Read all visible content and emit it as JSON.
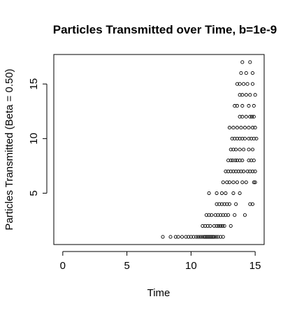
{
  "chart_data": {
    "type": "scatter",
    "title": "Particles Transmitted over Time, b=1e-9",
    "xlabel": "Time",
    "ylabel": "Particles Transmitted (Beta = 0.50)",
    "xlim": [
      -0.7,
      15.7
    ],
    "ylim": [
      0.3,
      17.7
    ],
    "x_ticks": [
      0,
      5,
      10,
      15
    ],
    "y_ticks": [
      5,
      10,
      15
    ],
    "grid": false,
    "marker": "open-circle",
    "points": [
      {
        "x": 7.8,
        "y": 1
      },
      {
        "x": 8.4,
        "y": 1
      },
      {
        "x": 8.8,
        "y": 1
      },
      {
        "x": 9.0,
        "y": 1
      },
      {
        "x": 9.3,
        "y": 1
      },
      {
        "x": 9.6,
        "y": 1
      },
      {
        "x": 9.8,
        "y": 1
      },
      {
        "x": 10.0,
        "y": 1
      },
      {
        "x": 10.2,
        "y": 1
      },
      {
        "x": 10.4,
        "y": 1
      },
      {
        "x": 10.55,
        "y": 1
      },
      {
        "x": 10.7,
        "y": 1
      },
      {
        "x": 10.85,
        "y": 1
      },
      {
        "x": 11.0,
        "y": 1
      },
      {
        "x": 11.1,
        "y": 1
      },
      {
        "x": 11.2,
        "y": 1
      },
      {
        "x": 11.3,
        "y": 1
      },
      {
        "x": 11.4,
        "y": 1
      },
      {
        "x": 11.5,
        "y": 1
      },
      {
        "x": 11.6,
        "y": 1
      },
      {
        "x": 11.7,
        "y": 1
      },
      {
        "x": 11.8,
        "y": 1
      },
      {
        "x": 11.95,
        "y": 1
      },
      {
        "x": 12.1,
        "y": 1
      },
      {
        "x": 12.3,
        "y": 1
      },
      {
        "x": 12.5,
        "y": 1
      },
      {
        "x": 10.9,
        "y": 2
      },
      {
        "x": 11.1,
        "y": 2
      },
      {
        "x": 11.3,
        "y": 2
      },
      {
        "x": 11.5,
        "y": 2
      },
      {
        "x": 11.8,
        "y": 2
      },
      {
        "x": 12.0,
        "y": 2
      },
      {
        "x": 12.15,
        "y": 2
      },
      {
        "x": 12.3,
        "y": 2
      },
      {
        "x": 12.45,
        "y": 2
      },
      {
        "x": 12.6,
        "y": 2
      },
      {
        "x": 13.1,
        "y": 2
      },
      {
        "x": 11.2,
        "y": 3
      },
      {
        "x": 11.4,
        "y": 3
      },
      {
        "x": 11.6,
        "y": 3
      },
      {
        "x": 11.9,
        "y": 3
      },
      {
        "x": 12.1,
        "y": 3
      },
      {
        "x": 12.3,
        "y": 3
      },
      {
        "x": 12.5,
        "y": 3
      },
      {
        "x": 12.7,
        "y": 3
      },
      {
        "x": 12.9,
        "y": 3
      },
      {
        "x": 13.4,
        "y": 3
      },
      {
        "x": 14.2,
        "y": 3
      },
      {
        "x": 12.0,
        "y": 4
      },
      {
        "x": 12.2,
        "y": 4
      },
      {
        "x": 12.4,
        "y": 4
      },
      {
        "x": 12.6,
        "y": 4
      },
      {
        "x": 12.8,
        "y": 4
      },
      {
        "x": 13.0,
        "y": 4
      },
      {
        "x": 13.5,
        "y": 4
      },
      {
        "x": 14.6,
        "y": 4
      },
      {
        "x": 14.8,
        "y": 4
      },
      {
        "x": 11.4,
        "y": 5
      },
      {
        "x": 12.0,
        "y": 5
      },
      {
        "x": 12.4,
        "y": 5
      },
      {
        "x": 12.7,
        "y": 5
      },
      {
        "x": 13.3,
        "y": 5
      },
      {
        "x": 13.8,
        "y": 5
      },
      {
        "x": 12.5,
        "y": 6
      },
      {
        "x": 12.8,
        "y": 6
      },
      {
        "x": 13.0,
        "y": 6
      },
      {
        "x": 13.3,
        "y": 6
      },
      {
        "x": 13.6,
        "y": 6
      },
      {
        "x": 14.0,
        "y": 6
      },
      {
        "x": 14.3,
        "y": 6
      },
      {
        "x": 14.9,
        "y": 6
      },
      {
        "x": 15.0,
        "y": 6
      },
      {
        "x": 12.7,
        "y": 7
      },
      {
        "x": 12.9,
        "y": 7
      },
      {
        "x": 13.1,
        "y": 7
      },
      {
        "x": 13.3,
        "y": 7
      },
      {
        "x": 13.5,
        "y": 7
      },
      {
        "x": 13.7,
        "y": 7
      },
      {
        "x": 13.9,
        "y": 7
      },
      {
        "x": 14.1,
        "y": 7
      },
      {
        "x": 14.4,
        "y": 7
      },
      {
        "x": 14.6,
        "y": 7
      },
      {
        "x": 14.8,
        "y": 7
      },
      {
        "x": 15.0,
        "y": 7
      },
      {
        "x": 12.9,
        "y": 8
      },
      {
        "x": 13.1,
        "y": 8
      },
      {
        "x": 13.25,
        "y": 8
      },
      {
        "x": 13.45,
        "y": 8
      },
      {
        "x": 13.6,
        "y": 8
      },
      {
        "x": 13.8,
        "y": 8
      },
      {
        "x": 14.0,
        "y": 8
      },
      {
        "x": 14.5,
        "y": 8
      },
      {
        "x": 14.7,
        "y": 8
      },
      {
        "x": 14.9,
        "y": 8
      },
      {
        "x": 13.1,
        "y": 9
      },
      {
        "x": 13.3,
        "y": 9
      },
      {
        "x": 13.5,
        "y": 9
      },
      {
        "x": 13.8,
        "y": 9
      },
      {
        "x": 14.1,
        "y": 9
      },
      {
        "x": 14.5,
        "y": 9
      },
      {
        "x": 14.8,
        "y": 9
      },
      {
        "x": 13.2,
        "y": 10
      },
      {
        "x": 13.4,
        "y": 10
      },
      {
        "x": 13.6,
        "y": 10
      },
      {
        "x": 13.8,
        "y": 10
      },
      {
        "x": 14.0,
        "y": 10
      },
      {
        "x": 14.2,
        "y": 10
      },
      {
        "x": 14.5,
        "y": 10
      },
      {
        "x": 14.7,
        "y": 10
      },
      {
        "x": 14.9,
        "y": 10
      },
      {
        "x": 15.1,
        "y": 10
      },
      {
        "x": 13.0,
        "y": 11
      },
      {
        "x": 13.3,
        "y": 11
      },
      {
        "x": 13.6,
        "y": 11
      },
      {
        "x": 13.9,
        "y": 11
      },
      {
        "x": 14.2,
        "y": 11
      },
      {
        "x": 14.5,
        "y": 11
      },
      {
        "x": 14.8,
        "y": 11
      },
      {
        "x": 15.0,
        "y": 11
      },
      {
        "x": 13.8,
        "y": 12
      },
      {
        "x": 14.0,
        "y": 12
      },
      {
        "x": 14.3,
        "y": 12
      },
      {
        "x": 14.6,
        "y": 12
      },
      {
        "x": 14.75,
        "y": 12
      },
      {
        "x": 14.9,
        "y": 12
      },
      {
        "x": 13.4,
        "y": 13
      },
      {
        "x": 13.6,
        "y": 13
      },
      {
        "x": 14.0,
        "y": 13
      },
      {
        "x": 14.5,
        "y": 13
      },
      {
        "x": 14.9,
        "y": 13
      },
      {
        "x": 13.8,
        "y": 14
      },
      {
        "x": 14.0,
        "y": 14
      },
      {
        "x": 14.3,
        "y": 14
      },
      {
        "x": 14.6,
        "y": 14
      },
      {
        "x": 15.0,
        "y": 14
      },
      {
        "x": 13.6,
        "y": 15
      },
      {
        "x": 13.8,
        "y": 15
      },
      {
        "x": 14.1,
        "y": 15
      },
      {
        "x": 14.4,
        "y": 15
      },
      {
        "x": 14.8,
        "y": 15
      },
      {
        "x": 13.9,
        "y": 16
      },
      {
        "x": 14.3,
        "y": 16
      },
      {
        "x": 14.8,
        "y": 16
      },
      {
        "x": 14.0,
        "y": 17
      },
      {
        "x": 14.6,
        "y": 17
      }
    ]
  }
}
